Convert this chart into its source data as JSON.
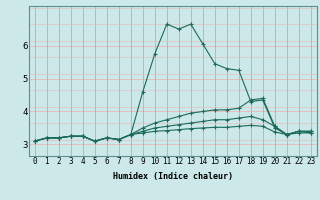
{
  "xlabel": "Humidex (Indice chaleur)",
  "ylabel": "",
  "background_color": "#cce8e8",
  "grid_color_h": "#e8b8b8",
  "grid_color_v": "#9ababa",
  "line_color": "#1a6b5a",
  "x_values": [
    0,
    1,
    2,
    3,
    4,
    5,
    6,
    7,
    8,
    9,
    10,
    11,
    12,
    13,
    14,
    15,
    16,
    17,
    18,
    19,
    20,
    21,
    22,
    23
  ],
  "series": [
    [
      3.1,
      3.2,
      3.2,
      3.25,
      3.25,
      3.1,
      3.2,
      3.15,
      3.3,
      4.6,
      5.75,
      6.65,
      6.5,
      6.65,
      6.05,
      5.45,
      5.3,
      5.25,
      4.3,
      4.35,
      3.5,
      3.3,
      3.4,
      3.4
    ],
    [
      3.1,
      3.2,
      3.2,
      3.25,
      3.25,
      3.1,
      3.2,
      3.15,
      3.3,
      3.5,
      3.65,
      3.75,
      3.85,
      3.95,
      4.0,
      4.05,
      4.05,
      4.1,
      4.35,
      4.4,
      3.55,
      3.3,
      3.4,
      3.4
    ],
    [
      3.1,
      3.2,
      3.2,
      3.25,
      3.25,
      3.1,
      3.2,
      3.15,
      3.3,
      3.4,
      3.5,
      3.55,
      3.6,
      3.65,
      3.7,
      3.75,
      3.75,
      3.8,
      3.85,
      3.75,
      3.55,
      3.3,
      3.4,
      3.35
    ],
    [
      3.1,
      3.2,
      3.2,
      3.25,
      3.25,
      3.1,
      3.2,
      3.15,
      3.3,
      3.35,
      3.4,
      3.42,
      3.45,
      3.48,
      3.5,
      3.52,
      3.52,
      3.55,
      3.58,
      3.55,
      3.38,
      3.3,
      3.35,
      3.35
    ]
  ],
  "ylim": [
    2.65,
    7.2
  ],
  "yticks": [
    3,
    4,
    5,
    6
  ],
  "xticks": [
    0,
    1,
    2,
    3,
    4,
    5,
    6,
    7,
    8,
    9,
    10,
    11,
    12,
    13,
    14,
    15,
    16,
    17,
    18,
    19,
    20,
    21,
    22,
    23
  ],
  "xlabel_fontsize": 6.0,
  "tick_fontsize": 5.5,
  "linewidth": 0.8,
  "markersize": 2.5
}
